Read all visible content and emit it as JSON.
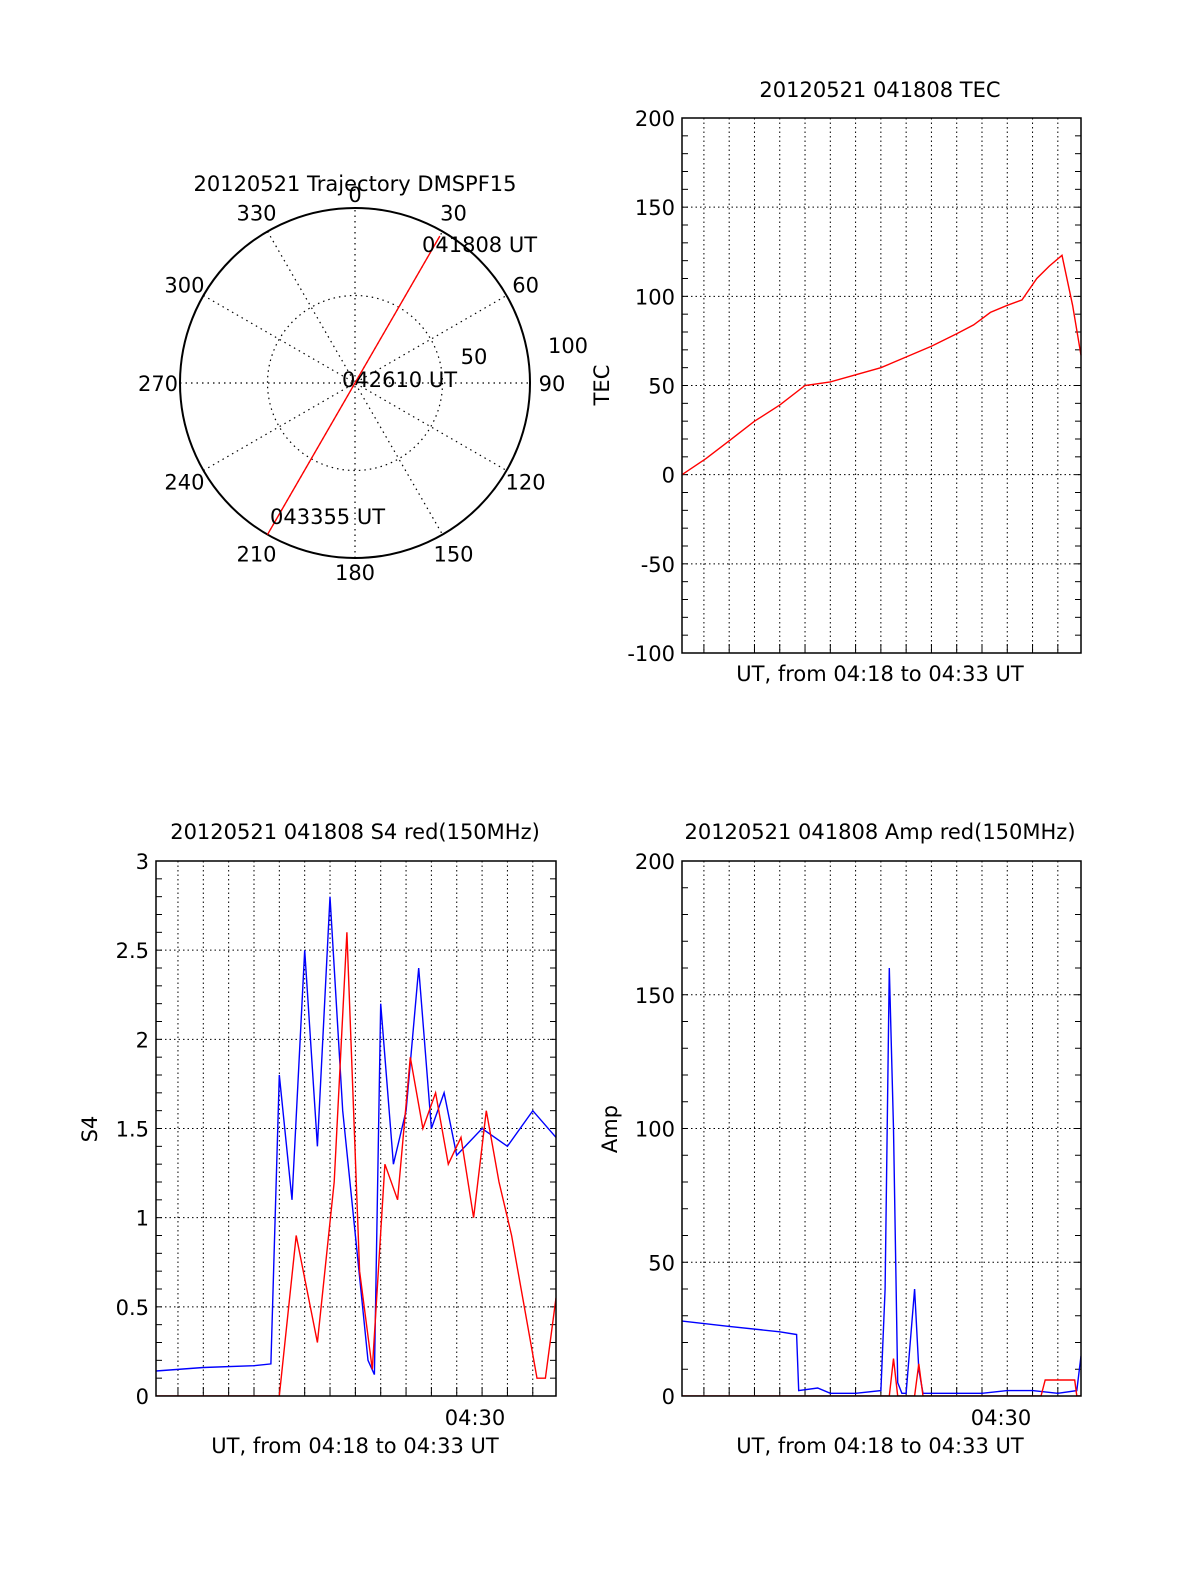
{
  "chart_data": [
    {
      "id": "polar",
      "type": "polar-trajectory",
      "title": "20120521 Trajectory DMSPF15",
      "angle_labels": [
        "0",
        "30",
        "60",
        "90",
        "120",
        "150",
        "180",
        "210",
        "240",
        "270",
        "300",
        "330"
      ],
      "radial_labels": [
        "50",
        "100"
      ],
      "radial_max": 100,
      "track": {
        "start": {
          "angle": 30,
          "r": 97,
          "label": "041808 UT"
        },
        "mid": {
          "angle": 0,
          "r": 0,
          "label": "042610 UT"
        },
        "end": {
          "angle": 210,
          "r": 100,
          "label": "043355 UT"
        }
      },
      "colors": {
        "track": "#ff0000",
        "frame": "#000000"
      }
    },
    {
      "id": "tec",
      "type": "line",
      "title": "20120521 041808 TEC",
      "xlabel": "UT, from 04:18 to 04:33 UT",
      "ylabel": "TEC",
      "ylim": [
        -100,
        200
      ],
      "yticks": [
        -100,
        -50,
        0,
        50,
        100,
        150,
        200
      ],
      "xlim": [
        "04:18:08",
        "04:33:55"
      ],
      "grid": true,
      "series": [
        {
          "color": "#ff0000",
          "x": [
            "04:18:08",
            "04:19:05",
            "04:20:00",
            "04:21:00",
            "04:22:00",
            "04:23:00",
            "04:24:00",
            "04:25:00",
            "04:26:00",
            "04:27:00",
            "04:28:00",
            "04:29:00",
            "04:29:40",
            "04:30:20",
            "04:31:00",
            "04:31:35",
            "04:32:10",
            "04:32:40",
            "04:33:10",
            "04:33:35",
            "04:33:55"
          ],
          "y": [
            0,
            9,
            19,
            30,
            39,
            50,
            52,
            56,
            60,
            66,
            72,
            79,
            84,
            91,
            95,
            98,
            110,
            117,
            123,
            95,
            67
          ]
        }
      ]
    },
    {
      "id": "s4",
      "type": "line",
      "title": "20120521 041808 S4 red(150MHz)",
      "xlabel": "UT, from 04:18 to 04:33 UT",
      "ylabel": "S4",
      "ylim": [
        0,
        3
      ],
      "yticks": [
        "0",
        "0.5",
        "1",
        "1.5",
        "2",
        "2.5",
        "3"
      ],
      "xtick_label": "04:30",
      "xlim": [
        "04:18:08",
        "04:33:55"
      ],
      "grid": true,
      "series": [
        {
          "color": "#0000ff",
          "x": [
            "04:18:08",
            "04:20:00",
            "04:22:00",
            "04:22:40",
            "04:23:00",
            "04:23:30",
            "04:24:00",
            "04:24:30",
            "04:25:00",
            "04:25:30",
            "04:26:00",
            "04:26:30",
            "04:26:45",
            "04:27:00",
            "04:27:30",
            "04:28:00",
            "04:28:30",
            "04:29:00",
            "04:29:30",
            "04:30:00",
            "04:31:00",
            "04:32:00",
            "04:33:00",
            "04:33:55"
          ],
          "y": [
            0.14,
            0.16,
            0.17,
            0.18,
            1.8,
            1.1,
            2.5,
            1.4,
            2.8,
            1.6,
            0.9,
            0.2,
            0.12,
            2.2,
            1.3,
            1.6,
            2.4,
            1.5,
            1.7,
            1.35,
            1.5,
            1.4,
            1.6,
            1.45
          ]
        },
        {
          "color": "#ff0000",
          "x": [
            "04:18:08",
            "04:20:00",
            "04:23:00",
            "04:23:40",
            "04:24:30",
            "04:25:10",
            "04:25:40",
            "04:26:10",
            "04:26:40",
            "04:27:10",
            "04:27:40",
            "04:28:10",
            "04:28:40",
            "04:29:10",
            "04:29:40",
            "04:30:10",
            "04:30:40",
            "04:31:10",
            "04:31:40",
            "04:32:10",
            "04:32:40",
            "04:33:10",
            "04:33:30",
            "04:33:55"
          ],
          "y": [
            0.0,
            0.0,
            0.0,
            0.9,
            0.3,
            1.2,
            2.6,
            0.7,
            0.15,
            1.3,
            1.1,
            1.9,
            1.5,
            1.7,
            1.3,
            1.45,
            1.0,
            1.6,
            1.2,
            0.9,
            0.5,
            0.1,
            0.1,
            0.55
          ]
        }
      ]
    },
    {
      "id": "amp",
      "type": "line",
      "title": "20120521 041808 Amp red(150MHz)",
      "xlabel": "UT, from 04:18 to 04:33 UT",
      "ylabel": "Amp",
      "ylim": [
        0,
        200
      ],
      "yticks": [
        "0",
        "50",
        "100",
        "150",
        "200"
      ],
      "xtick_label": "04:30",
      "xlim": [
        "04:18:08",
        "04:33:55"
      ],
      "grid": true,
      "series": [
        {
          "color": "#0000ff",
          "x": [
            "04:18:08",
            "04:20:00",
            "04:22:00",
            "04:22:40",
            "04:22:45",
            "04:23:30",
            "04:24:00",
            "04:25:00",
            "04:26:00",
            "04:26:10",
            "04:26:20",
            "04:26:30",
            "04:26:40",
            "04:26:50",
            "04:27:00",
            "04:27:20",
            "04:27:30",
            "04:27:40",
            "04:28:00",
            "04:29:00",
            "04:30:00",
            "04:31:00",
            "04:32:00",
            "04:33:00",
            "04:33:45",
            "04:33:55"
          ],
          "y": [
            28,
            26,
            24,
            23,
            2,
            3,
            1,
            1,
            2,
            40,
            160,
            100,
            5,
            1,
            1,
            40,
            10,
            1,
            1,
            1,
            1,
            2,
            2,
            1,
            2,
            15
          ]
        },
        {
          "color": "#ff0000",
          "x": [
            "04:18:08",
            "04:26:00",
            "04:26:20",
            "04:26:30",
            "04:26:40",
            "04:27:00",
            "04:27:20",
            "04:27:30",
            "04:27:40",
            "04:32:20",
            "04:32:30",
            "04:33:40",
            "04:33:45",
            "04:33:55"
          ],
          "y": [
            0,
            0,
            0,
            14,
            0,
            0,
            0,
            12,
            0,
            0,
            6,
            6,
            0,
            0
          ]
        }
      ]
    }
  ]
}
